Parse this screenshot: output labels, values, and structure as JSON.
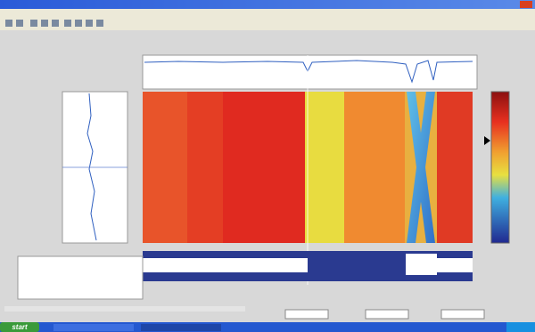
{
  "taskbar": {
    "start": "start"
  }
}
